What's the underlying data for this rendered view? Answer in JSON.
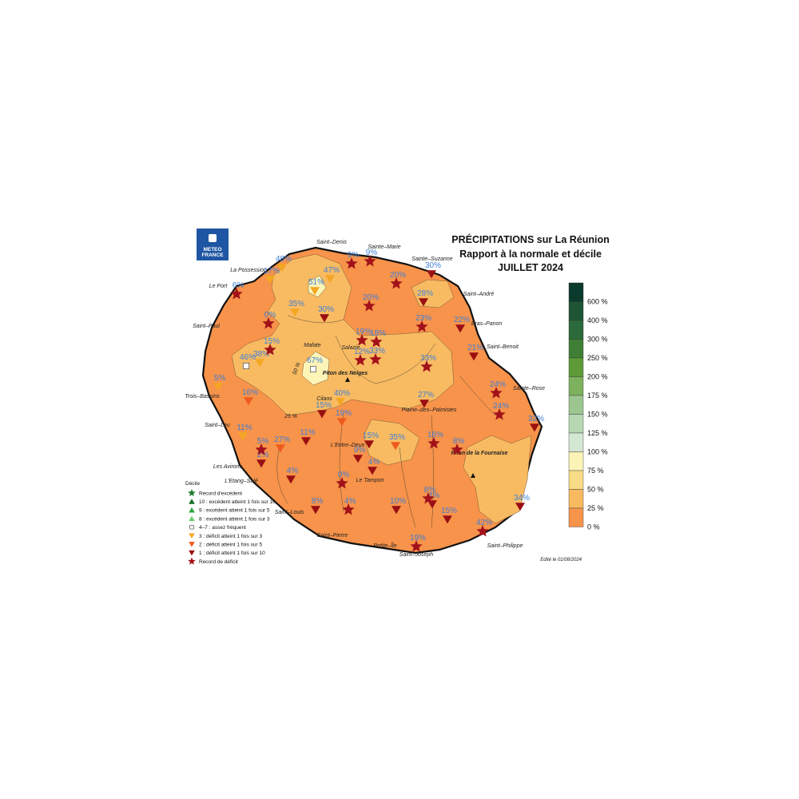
{
  "logo": {
    "line1": "METEO",
    "line2": "FRANCE"
  },
  "title": [
    "PRÉCIPITATIONS sur La Réunion",
    "Rapport à la normale et décile",
    "JUILLET 2024"
  ],
  "scale": {
    "labels": [
      "600 %",
      "400 %",
      "300 %",
      "250 %",
      "200 %",
      "175 %",
      "150 %",
      "125 %",
      "100 %",
      "75 %",
      "50 %",
      "25 %",
      "0 %"
    ]
  },
  "legend": {
    "title": "Décile",
    "items": [
      {
        "label": "Record d'excédent"
      },
      {
        "label": "10 : excédent atteint 1 fois sur 10"
      },
      {
        "label": "9 : excédent atteint 1 fois sur 5"
      },
      {
        "label": "8 : excédent atteint 1 fois sur 3"
      },
      {
        "label": "4–7 : assez fréquent",
        "stations": [
          "46%",
          "67%"
        ]
      },
      {
        "label": "3 : déficit atteint 1 fois sur 3",
        "stations": [
          "48%",
          "17%",
          "51%",
          "47%",
          "35%",
          "38%",
          "5%",
          "40%",
          "11%"
        ]
      },
      {
        "label": "2 : déficit atteint 1 fois sur 5",
        "stations": [
          "16%",
          "19%",
          "27%",
          "35%"
        ]
      },
      {
        "label": "1 : déficit  atteint 1 fois sur 10",
        "stations": [
          "30%",
          "30%",
          "28%",
          "22%",
          "21%",
          "27%",
          "15%",
          "32%",
          "11%",
          "15%",
          "2%",
          "9%",
          "4%",
          "4%",
          "8%",
          "10%",
          "4%",
          "15%",
          "34%"
        ]
      },
      {
        "label": "Record de déficit",
        "stations": [
          "6%",
          "9%",
          "9%",
          "20%",
          "0%",
          "20%",
          "23%",
          "19%",
          "18%",
          "15%",
          "12%",
          "33%",
          "33%",
          "24%",
          "24%",
          "5%",
          "16%",
          "8%",
          "0%",
          "4%",
          "8%",
          "42%",
          "19%"
        ]
      }
    ]
  },
  "places": [
    "Saint–Denis",
    "Sainte–Marie",
    "Sainte–Suzanne",
    "La Possession",
    "Le Port",
    "Saint–André",
    "Saint–Paul",
    "Bras–Panon",
    "Saint–Benoit",
    "Mafate",
    "Salazie",
    "Piton des Neiges",
    "Sainte–Rose",
    "Trois–Bassins",
    "Cilaos",
    "Plaine–des–Palmistes",
    "Saint–Leu",
    "L'Entre–Deux",
    "Piton de la Fournaise",
    "Les Avirons",
    "L'Etang–Salé",
    "Le Tampon",
    "Saint–Louis",
    "Saint–Pierre",
    "Petite–Île",
    "Saint–Joseph",
    "Saint–Philippe"
  ],
  "contour_labels": [
    "25 %",
    "50 %"
  ],
  "edited": "Edité le 01/08/2024"
}
